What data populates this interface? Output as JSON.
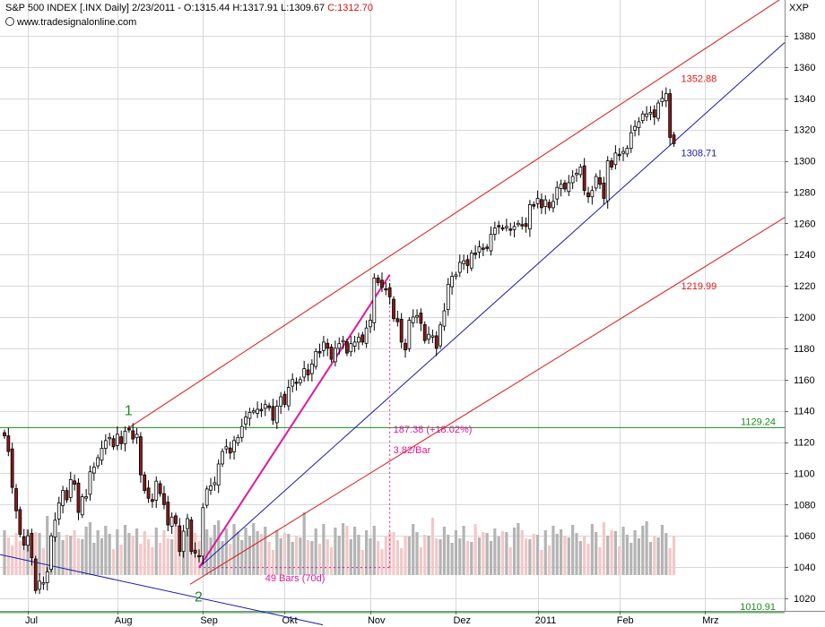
{
  "header": {
    "title": "S&P 500 INDEX [.INX Daily] 2/23/2011 - O:1315.44 H:1317.91 L:1309.67",
    "close": "C:1312.70",
    "source": "www.tradesignalonline.com",
    "symbol_label": "XXP"
  },
  "colors": {
    "background": "#ffffff",
    "grid": "#d8d8d8",
    "channel": "#e01818",
    "trend": "#1a1ab0",
    "level": "#1e8a1e",
    "measure": "#e0189a",
    "up_candle": "#ffffff",
    "down_candle": "#8a1a1a",
    "volume_up": "#b4b4b4",
    "volume_down": "#f2c8c8"
  },
  "chart_data": {
    "type": "candlestick",
    "title": "S&P 500 INDEX [.INX Daily]",
    "ylim": [
      1010,
      1390
    ],
    "yticks": [
      1020,
      1040,
      1060,
      1080,
      1100,
      1120,
      1140,
      1160,
      1180,
      1200,
      1220,
      1240,
      1260,
      1280,
      1300,
      1320,
      1340,
      1360,
      1380
    ],
    "grid": true,
    "x_months": [
      {
        "label": "Jul",
        "day": 6
      },
      {
        "label": "Aug",
        "day": 29
      },
      {
        "label": "Sep",
        "day": 51
      },
      {
        "label": "Okt",
        "day": 72
      },
      {
        "label": "Nov",
        "day": 94
      },
      {
        "label": "Dez",
        "day": 116
      },
      {
        "label": "2011",
        "day": 137
      },
      {
        "label": "Feb",
        "day": 158
      },
      {
        "label": "Mrz",
        "day": 180
      }
    ],
    "closes": [
      1124,
      1114,
      1091,
      1076,
      1061,
      1054,
      1060,
      1046,
      1025,
      1031,
      1030,
      1037,
      1060,
      1070,
      1081,
      1089,
      1083,
      1096,
      1093,
      1075,
      1085,
      1085,
      1101,
      1104,
      1110,
      1116,
      1121,
      1123,
      1117,
      1125,
      1119,
      1127,
      1128,
      1122,
      1125,
      1099,
      1089,
      1084,
      1082,
      1095,
      1087,
      1080,
      1067,
      1072,
      1068,
      1050,
      1063,
      1071,
      1050,
      1049,
      1047,
      1078,
      1090,
      1092,
      1094,
      1106,
      1114,
      1117,
      1113,
      1121,
      1123,
      1130,
      1136,
      1139,
      1140,
      1141,
      1140,
      1144,
      1142,
      1134,
      1143,
      1149,
      1144,
      1155,
      1160,
      1158,
      1160,
      1167,
      1163,
      1170,
      1178,
      1177,
      1184,
      1180,
      1173,
      1180,
      1183,
      1185,
      1177,
      1183,
      1184,
      1187,
      1184,
      1193,
      1198,
      1225,
      1222,
      1219,
      1218,
      1213,
      1199,
      1197,
      1184,
      1179,
      1198,
      1200,
      1201,
      1196,
      1185,
      1189,
      1188,
      1180,
      1195,
      1204,
      1221,
      1226,
      1227,
      1235,
      1236,
      1233,
      1241,
      1240,
      1245,
      1244,
      1244,
      1253,
      1257,
      1258,
      1257,
      1258,
      1256,
      1258,
      1260,
      1259,
      1258,
      1272,
      1271,
      1276,
      1270,
      1275,
      1270,
      1274,
      1283,
      1285,
      1282,
      1286,
      1290,
      1292,
      1296,
      1281,
      1277,
      1281,
      1290,
      1285,
      1276,
      1300,
      1296,
      1305,
      1304,
      1306,
      1308,
      1318,
      1322,
      1325,
      1330,
      1330,
      1331,
      1328,
      1337,
      1340,
      1343,
      1315,
      1311
    ],
    "current_price": 1312.7,
    "lines": [
      {
        "name": "upper-channel",
        "label": "1352.88",
        "value": 1352.88
      },
      {
        "name": "mid-channel",
        "label": "1219.99",
        "value": 1219.99
      },
      {
        "name": "trendline",
        "label": "1308.71",
        "value": 1308.71
      },
      {
        "name": "resistance",
        "label": "1129.24",
        "value": 1129.24
      },
      {
        "name": "support",
        "label": "1010.91",
        "value": 1010.91
      }
    ],
    "pivots": [
      {
        "label": "1",
        "day": 32,
        "value": 1129.24
      },
      {
        "label": "2",
        "day": 50,
        "value": 1039.7
      }
    ],
    "measurement": {
      "start": {
        "day": 50,
        "value": 1039.7
      },
      "end": {
        "day": 99,
        "value": 1227.1
      },
      "change": "187.38 (+18.02%)",
      "rate": "3.82/Bar",
      "bars": "49 Bars (70d)"
    }
  }
}
